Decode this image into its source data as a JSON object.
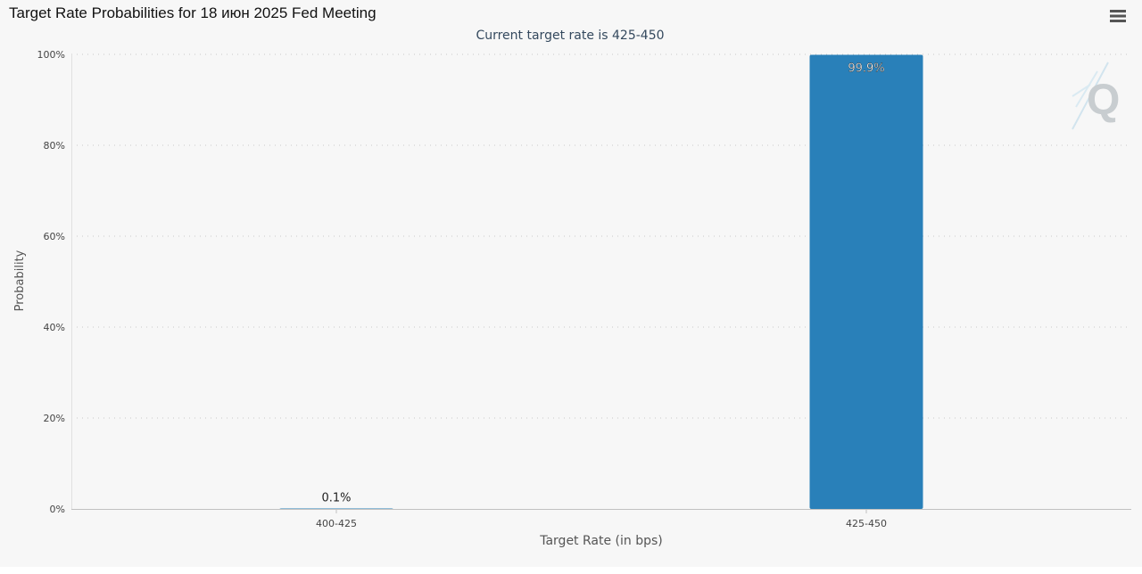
{
  "page": {
    "title": "Target Rate Probabilities for 18 июн 2025 Fed Meeting"
  },
  "toolbar": {
    "menu_icon": "hamburger-menu-icon"
  },
  "watermark": {
    "icon": "cme-quikstrike-logo",
    "letter": "Q"
  },
  "colors": {
    "bar": "#2980b9",
    "background": "#f7f7f7",
    "axis_text": "#444444",
    "subtitle": "#34495e"
  },
  "chart_data": {
    "type": "bar",
    "title": "Target Rate Probabilities for 18 июн 2025 Fed Meeting",
    "subtitle": "Current target rate is 425-450",
    "categories": [
      "400-425",
      "425-450"
    ],
    "values": [
      0.1,
      99.9
    ],
    "data_labels": [
      "0.1%",
      "99.9%"
    ],
    "xlabel": "Target Rate (in bps)",
    "ylabel": "Probability",
    "ylim": [
      0,
      100
    ],
    "yticks": [
      0,
      20,
      40,
      60,
      80,
      100
    ],
    "ytick_labels": [
      "0%",
      "20%",
      "40%",
      "60%",
      "80%",
      "100%"
    ],
    "grid": true,
    "legend": "none"
  }
}
